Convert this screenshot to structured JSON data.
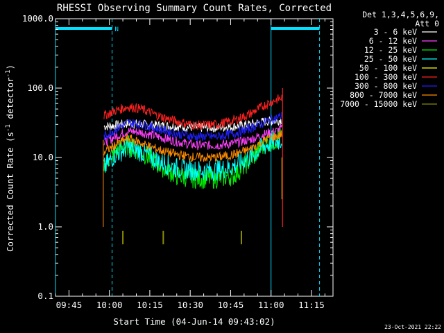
{
  "chart_data": {
    "type": "line",
    "title": "RHESSI Observing Summary Count Rates, Corrected",
    "xlabel": "Start Time (04-Jun-14 09:43:02)",
    "ylabel": "Corrected Count Rate (s",
    "ylabel_sup": "-1",
    "ylabel_tail": " detector",
    "ylabel_tail_sup": "-1",
    "ylabel_end": ")",
    "y_scale": "log",
    "ylim": [
      0.1,
      1000.0
    ],
    "y_ticks": [
      {
        "v": 1000.0,
        "label": "1000.0"
      },
      {
        "v": 100.0,
        "label": "100.0"
      },
      {
        "v": 10.0,
        "label": "10.0"
      },
      {
        "v": 1.0,
        "label": "1.0"
      },
      {
        "v": 0.1,
        "label": "0.1"
      }
    ],
    "xlim": [
      "09:40",
      "11:23"
    ],
    "x_ticks": [
      "09:45",
      "10:00",
      "10:15",
      "10:30",
      "10:45",
      "11:00",
      "11:15"
    ],
    "legend": {
      "placement": "right",
      "header1": "Det 1,3,4,5,6,9,",
      "header2": "Att 0",
      "entries": [
        {
          "label": "3 - 6 keV",
          "color": "#ffffff"
        },
        {
          "label": "6 - 12 keV",
          "color": "#ff40ff"
        },
        {
          "label": "12 - 25 keV",
          "color": "#00ee00"
        },
        {
          "label": "25 - 50 keV",
          "color": "#00ffff"
        },
        {
          "label": "50 - 100 keV",
          "color": "#ffff00"
        },
        {
          "label": "100 - 300 keV",
          "color": "#ff2020"
        },
        {
          "label": "300 - 800 keV",
          "color": "#2020ff"
        },
        {
          "label": "800 - 7000 keV",
          "color": "#ff8c00"
        },
        {
          "label": "7000 - 15000 keV",
          "color": "#8b8b00"
        }
      ]
    },
    "night_marker": "N",
    "night_intervals": [
      [
        "09:40",
        "10:01"
      ],
      [
        "11:00",
        "11:18"
      ]
    ],
    "series_profile_x": [
      "09:58",
      "10:02",
      "10:07",
      "10:12",
      "10:18",
      "10:25",
      "10:32",
      "10:40",
      "10:46",
      "10:52",
      "10:58",
      "11:02",
      "11:04"
    ],
    "series": [
      {
        "name": "3 - 6 keV",
        "color": "#ffffff",
        "y": [
          28,
          29,
          31,
          30,
          29,
          28,
          27,
          27,
          28,
          30,
          33,
          34,
          35
        ]
      },
      {
        "name": "6 - 12 keV",
        "color": "#ff40ff",
        "y": [
          16,
          20,
          24,
          23,
          20,
          17,
          15,
          15,
          16,
          18,
          22,
          24,
          26
        ]
      },
      {
        "name": "12 - 25 keV",
        "color": "#00ee00",
        "y": [
          8,
          12,
          15,
          12,
          8,
          5.5,
          5,
          5,
          5.5,
          9,
          16,
          18,
          20
        ]
      },
      {
        "name": "25 - 50 keV",
        "color": "#00ffff",
        "y": [
          7,
          11,
          14,
          12,
          9,
          7,
          6.5,
          6.5,
          7.5,
          10,
          15,
          17,
          18
        ]
      },
      {
        "name": "100 - 300 keV",
        "color": "#ff2020",
        "y": [
          40,
          47,
          54,
          50,
          40,
          33,
          29,
          30,
          34,
          42,
          58,
          68,
          72
        ]
      },
      {
        "name": "300 - 800 keV",
        "color": "#2020ff",
        "y": [
          20,
          25,
          32,
          30,
          26,
          22,
          20,
          20,
          22,
          26,
          33,
          37,
          40
        ]
      },
      {
        "name": "800 - 7000 keV",
        "color": "#ff8c00",
        "y": [
          12,
          15,
          19,
          16,
          13,
          11,
          10,
          10,
          11,
          13,
          18,
          20,
          22
        ]
      }
    ],
    "spikes": [
      {
        "x": "10:05",
        "y": 0.7,
        "color": "#8b8b00"
      },
      {
        "x": "10:20",
        "y": 0.7,
        "color": "#8b8b00"
      },
      {
        "x": "10:49",
        "y": 0.7,
        "color": "#8b8b00"
      }
    ]
  },
  "footer_date": "23-Oct-2021 22:22"
}
